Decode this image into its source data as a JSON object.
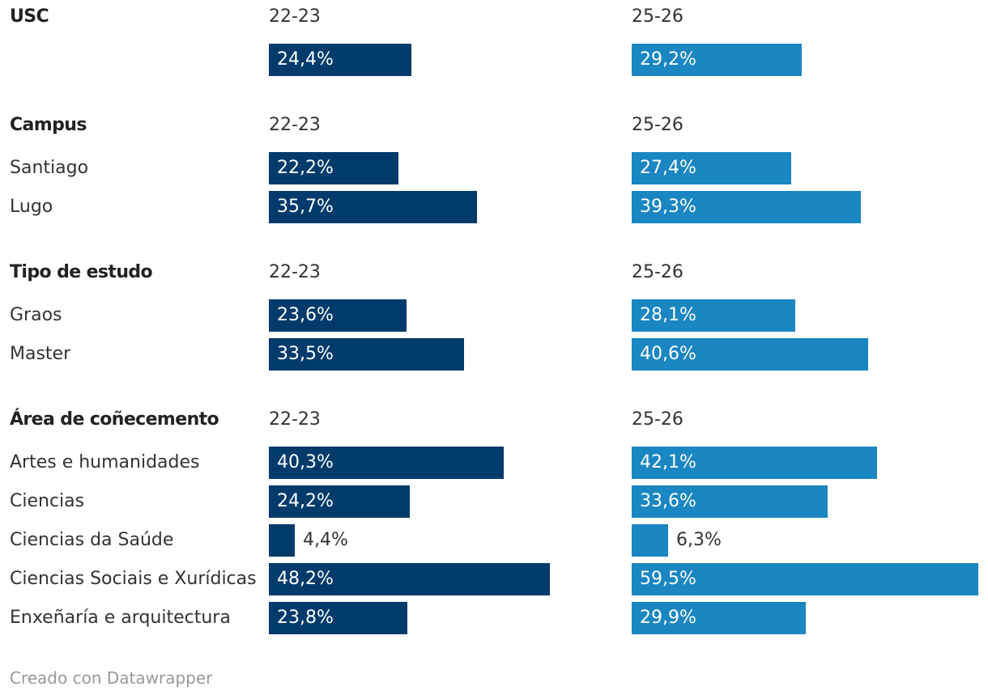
{
  "chart_data": {
    "type": "bar",
    "orientation": "horizontal",
    "series": [
      {
        "name": "22-23",
        "color": "#003b6b"
      },
      {
        "name": "25-26",
        "color": "#1a86c2"
      }
    ],
    "groups": [
      {
        "title": "USC",
        "rows": [
          {
            "label": "",
            "values": [
              24.4,
              29.2
            ],
            "labels": [
              "24,4%",
              "29,2%"
            ]
          }
        ]
      },
      {
        "title": "Campus",
        "rows": [
          {
            "label": "Santiago",
            "values": [
              22.2,
              27.4
            ],
            "labels": [
              "22,2%",
              "27,4%"
            ]
          },
          {
            "label": "Lugo",
            "values": [
              35.7,
              39.3
            ],
            "labels": [
              "35,7%",
              "39,3%"
            ]
          }
        ]
      },
      {
        "title": "Tipo de estudo",
        "rows": [
          {
            "label": "Graos",
            "values": [
              23.6,
              28.1
            ],
            "labels": [
              "23,6%",
              "28,1%"
            ]
          },
          {
            "label": "Master",
            "values": [
              33.5,
              40.6
            ],
            "labels": [
              "33,5%",
              "40,6%"
            ]
          }
        ]
      },
      {
        "title": "Área de coñecemento",
        "rows": [
          {
            "label": "Artes e humanidades",
            "values": [
              40.3,
              42.1
            ],
            "labels": [
              "40,3%",
              "42,1%"
            ]
          },
          {
            "label": "Ciencias",
            "values": [
              24.2,
              33.6
            ],
            "labels": [
              "24,2%",
              "33,6%"
            ]
          },
          {
            "label": "Ciencias da Saúde",
            "values": [
              4.4,
              6.3
            ],
            "labels": [
              "4,4%",
              "6,3%"
            ]
          },
          {
            "label": "Ciencias Sociais e Xurídicas",
            "values": [
              48.2,
              59.5
            ],
            "labels": [
              "48,2%",
              "59,5%"
            ]
          },
          {
            "label": "Enxeñaría e arquitectura",
            "values": [
              23.8,
              29.9
            ],
            "labels": [
              "23,8%",
              "29,9%"
            ]
          }
        ]
      }
    ],
    "xlim": [
      0,
      59.5
    ],
    "grid": false,
    "legend": "column headers"
  },
  "credit": "Creado con Datawrapper",
  "colors": {
    "dark": "#003b6b",
    "light": "#1a86c2",
    "label_inside": "#ffffff",
    "label_outside": "#333333"
  }
}
